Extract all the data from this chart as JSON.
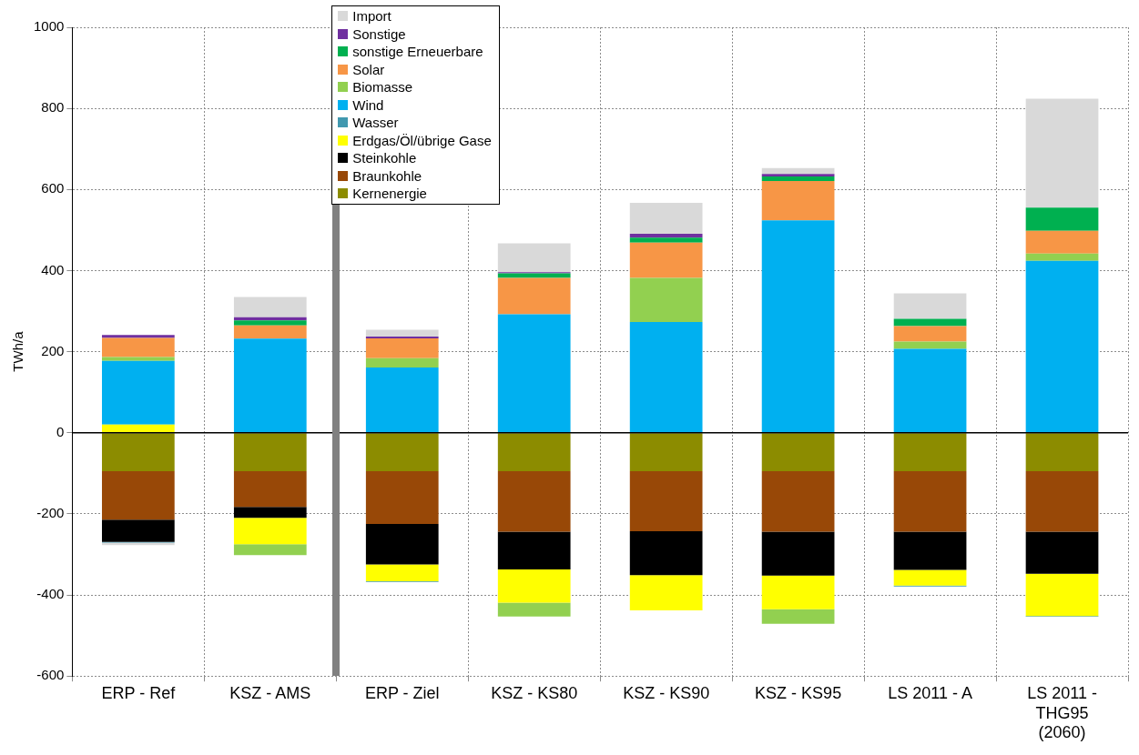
{
  "chart_data": {
    "type": "bar",
    "stacked": true,
    "ylabel": "TWh/a",
    "categories": [
      "ERP - Ref",
      "KSZ - AMS",
      "ERP - Ziel",
      "KSZ - KS80",
      "KSZ - KS90",
      "KSZ - KS95",
      "LS 2011 - A",
      "LS 2011 - THG95 (2060)"
    ],
    "ylim": [
      -600,
      1000
    ],
    "yticks": [
      -600,
      -400,
      -200,
      0,
      200,
      400,
      600,
      800,
      1000
    ],
    "grid": true,
    "legend": "top",
    "ref_lines": [
      {
        "axis": "y",
        "value": 0,
        "color": "#000000"
      }
    ],
    "series": [
      {
        "name": "Kernenergie",
        "color": "#8c8c00",
        "values": [
          -95,
          -95,
          -95,
          -95,
          -95,
          -95,
          -95,
          -95
        ]
      },
      {
        "name": "Braunkohle",
        "color": "#984807",
        "values": [
          -119,
          -88,
          -130,
          -149,
          -148,
          -149,
          -149,
          -149
        ]
      },
      {
        "name": "Steinkohle",
        "color": "#000000",
        "values": [
          -55,
          -27,
          -100,
          -93,
          -108,
          -108,
          -94,
          -104
        ]
      },
      {
        "name": "Erdgas/Öl/übrige Gase",
        "color": "#ffff00",
        "values": [
          20,
          -65,
          -41,
          -82,
          -87,
          -83,
          -39,
          -104
        ]
      },
      {
        "name": "Wasser",
        "color": "#4198af",
        "values": [
          -2,
          null,
          -2,
          null,
          null,
          null,
          -2,
          -2
        ]
      },
      {
        "name": "Wind",
        "color": "#00b0f0",
        "values": [
          157,
          232,
          161,
          292,
          273,
          524,
          207,
          424
        ]
      },
      {
        "name": "Biomasse",
        "color": "#92d050",
        "values": [
          10,
          -27,
          23,
          -34,
          109,
          -36,
          18,
          18
        ]
      },
      {
        "name": "Solar",
        "color": "#f79646",
        "values": [
          47,
          33,
          49,
          90,
          87,
          97,
          38,
          56
        ]
      },
      {
        "name": "sonstige Erneuerbare",
        "color": "#00b050",
        "values": [
          null,
          12,
          null,
          11,
          12,
          11,
          18,
          57
        ]
      },
      {
        "name": "Sonstige",
        "color": "#7030a0",
        "values": [
          7,
          8,
          4,
          3,
          10,
          6,
          null,
          null
        ]
      },
      {
        "name": "Import",
        "color": "#d9d9d9",
        "values": [
          -6,
          50,
          17,
          71,
          76,
          15,
          63,
          269
        ]
      }
    ]
  }
}
